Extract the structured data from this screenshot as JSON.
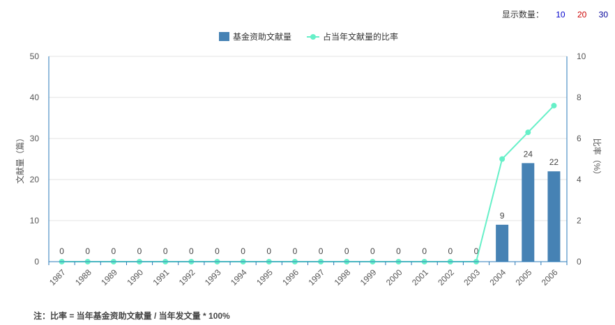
{
  "display_count": {
    "label": "显示数量：",
    "options": [
      {
        "text": "10",
        "color": "#0000cc"
      },
      {
        "text": "20",
        "color": "#cc0000"
      },
      {
        "text": "30",
        "color": "#000099"
      }
    ]
  },
  "chart_data": {
    "type": "bar",
    "categories": [
      "1987",
      "1988",
      "1989",
      "1990",
      "1991",
      "1992",
      "1993",
      "1994",
      "1995",
      "1996",
      "1997",
      "1998",
      "1999",
      "2000",
      "2001",
      "2002",
      "2003",
      "2004",
      "2005",
      "2006"
    ],
    "series": [
      {
        "name": "基金资助文献量",
        "type": "bar",
        "axis": "left",
        "color": "#4682b4",
        "values": [
          0,
          0,
          0,
          0,
          0,
          0,
          0,
          0,
          0,
          0,
          0,
          0,
          0,
          0,
          0,
          0,
          0,
          9,
          24,
          22
        ]
      },
      {
        "name": "占当年文献量的比率",
        "type": "line",
        "axis": "right",
        "color": "#66f0c8",
        "values": [
          0,
          0,
          0,
          0,
          0,
          0,
          0,
          0,
          0,
          0,
          0,
          0,
          0,
          0,
          0,
          0,
          0,
          5.0,
          6.3,
          7.6
        ]
      }
    ],
    "ylabel": "文献量（篇）",
    "y2label": "比率（%）",
    "ylim": [
      0,
      50
    ],
    "y2lim": [
      0,
      10
    ],
    "yticks": [
      "0",
      "10",
      "20",
      "30",
      "40",
      "50"
    ],
    "y2ticks": [
      "0",
      "2",
      "4",
      "6",
      "8",
      "10"
    ],
    "grid": true,
    "legend_position": "top"
  },
  "note": "注：比率 = 当年基金资助文献量 / 当年发文量 * 100%"
}
